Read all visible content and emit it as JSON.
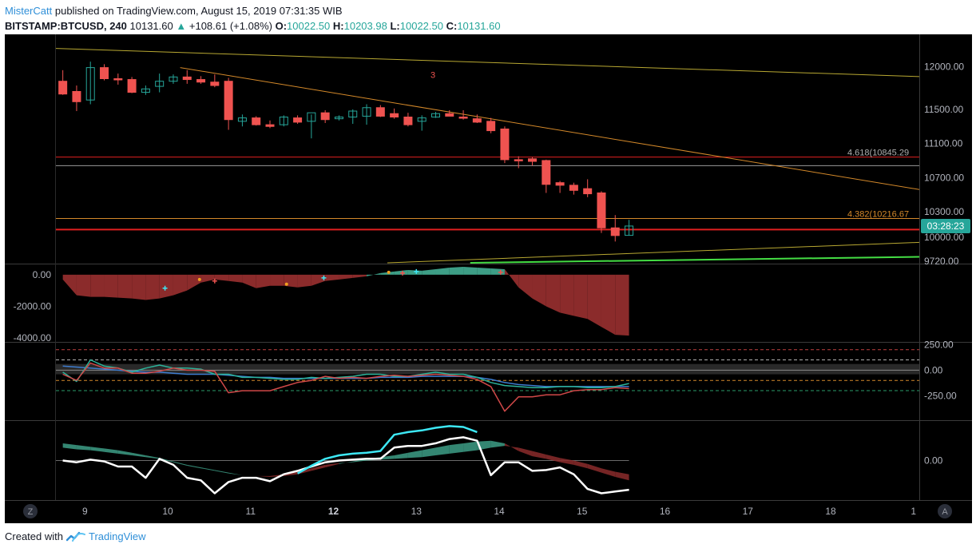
{
  "header": {
    "author": "MisterCatt",
    "published_text": "published on TradingView.com, August 15, 2019 07:31:35 WIB",
    "symbol": "BITSTAMP:BTCUSD, 240",
    "last": "10131.60",
    "change": "+108.61 (+1.08%)",
    "o_label": "O:",
    "o_value": "10022.50",
    "h_label": "H:",
    "h_value": "10203.98",
    "l_label": "L:",
    "l_value": "10022.50",
    "c_label": "C:",
    "c_value": "10131.60"
  },
  "footer": {
    "created_with": "Created with",
    "brand": "TradingView"
  },
  "colors": {
    "up": "#26a69a",
    "down": "#ef5350",
    "background": "#000000",
    "red_line": "#e02020",
    "orange_line": "#d4892a",
    "yellow_line": "#b8a832",
    "green_line": "#44dd44",
    "fill_red": "#8b2b2b",
    "fill_green": "#3d9e86",
    "cyan": "#3de8f5"
  },
  "chart_data": {
    "type": "candlestick",
    "title": "BITSTAMP:BTCUSD, 240",
    "x_ticks": [
      {
        "x": 0.35,
        "label": "9",
        "bold": false
      },
      {
        "x": 1.35,
        "label": "10",
        "bold": false
      },
      {
        "x": 2.35,
        "label": "11",
        "bold": false
      },
      {
        "x": 3.35,
        "label": "12",
        "bold": true
      },
      {
        "x": 4.35,
        "label": "13",
        "bold": false
      },
      {
        "x": 5.35,
        "label": "14",
        "bold": false
      },
      {
        "x": 6.35,
        "label": "15",
        "bold": false
      },
      {
        "x": 7.35,
        "label": "16",
        "bold": false
      },
      {
        "x": 8.35,
        "label": "17",
        "bold": false
      },
      {
        "x": 9.35,
        "label": "18",
        "bold": false
      },
      {
        "x": 10.35,
        "label": "1",
        "bold": false
      }
    ],
    "x_range": [
      0,
      10.42
    ],
    "main": {
      "y_range": [
        9700,
        12380
      ],
      "y_ticks": [
        12000,
        11500,
        11100,
        10700,
        10300,
        10000,
        9720
      ],
      "y_tick_labels": [
        "12000.00",
        "11500.00",
        "11100.00",
        "10700.00",
        "10300.00",
        "10000.00",
        "9720.00"
      ],
      "candles": [
        {
          "o": 11830,
          "h": 11960,
          "l": 11670,
          "c": 11680
        },
        {
          "o": 11710,
          "h": 11780,
          "l": 11480,
          "c": 11590
        },
        {
          "o": 11610,
          "h": 12060,
          "l": 11560,
          "c": 11990
        },
        {
          "o": 11990,
          "h": 12030,
          "l": 11840,
          "c": 11860
        },
        {
          "o": 11860,
          "h": 11920,
          "l": 11790,
          "c": 11850
        },
        {
          "o": 11850,
          "h": 11880,
          "l": 11690,
          "c": 11700
        },
        {
          "o": 11700,
          "h": 11780,
          "l": 11670,
          "c": 11740
        },
        {
          "o": 11770,
          "h": 11920,
          "l": 11700,
          "c": 11830
        },
        {
          "o": 11830,
          "h": 11910,
          "l": 11800,
          "c": 11880
        },
        {
          "o": 11880,
          "h": 11960,
          "l": 11800,
          "c": 11850
        },
        {
          "o": 11850,
          "h": 11890,
          "l": 11800,
          "c": 11820
        },
        {
          "o": 11820,
          "h": 11910,
          "l": 11760,
          "c": 11780
        },
        {
          "o": 11830,
          "h": 11870,
          "l": 11260,
          "c": 11380
        },
        {
          "o": 11360,
          "h": 11440,
          "l": 11300,
          "c": 11400
        },
        {
          "o": 11400,
          "h": 11420,
          "l": 11310,
          "c": 11320
        },
        {
          "o": 11320,
          "h": 11370,
          "l": 11280,
          "c": 11300
        },
        {
          "o": 11320,
          "h": 11430,
          "l": 11300,
          "c": 11410
        },
        {
          "o": 11400,
          "h": 11430,
          "l": 11330,
          "c": 11350
        },
        {
          "o": 11360,
          "h": 11440,
          "l": 11160,
          "c": 11460
        },
        {
          "o": 11460,
          "h": 11490,
          "l": 11340,
          "c": 11380
        },
        {
          "o": 11390,
          "h": 11430,
          "l": 11370,
          "c": 11410
        },
        {
          "o": 11410,
          "h": 11500,
          "l": 11330,
          "c": 11480
        },
        {
          "o": 11420,
          "h": 11560,
          "l": 11320,
          "c": 11520
        },
        {
          "o": 11520,
          "h": 11550,
          "l": 11410,
          "c": 11420
        },
        {
          "o": 11450,
          "h": 11510,
          "l": 11390,
          "c": 11410
        },
        {
          "o": 11410,
          "h": 11460,
          "l": 11300,
          "c": 11320
        },
        {
          "o": 11360,
          "h": 11430,
          "l": 11250,
          "c": 11400
        },
        {
          "o": 11410,
          "h": 11470,
          "l": 11400,
          "c": 11450
        },
        {
          "o": 11450,
          "h": 11490,
          "l": 11420,
          "c": 11420
        },
        {
          "o": 11410,
          "h": 11490,
          "l": 11380,
          "c": 11400
        },
        {
          "o": 11390,
          "h": 11440,
          "l": 11340,
          "c": 11350
        },
        {
          "o": 11360,
          "h": 11400,
          "l": 11220,
          "c": 11250
        },
        {
          "o": 11270,
          "h": 11300,
          "l": 10870,
          "c": 10910
        },
        {
          "o": 10910,
          "h": 10950,
          "l": 10810,
          "c": 10900
        },
        {
          "o": 10920,
          "h": 10940,
          "l": 10840,
          "c": 10890
        },
        {
          "o": 10900,
          "h": 10910,
          "l": 10520,
          "c": 10620
        },
        {
          "o": 10640,
          "h": 10660,
          "l": 10520,
          "c": 10610
        },
        {
          "o": 10610,
          "h": 10640,
          "l": 10500,
          "c": 10550
        },
        {
          "o": 10570,
          "h": 10680,
          "l": 10470,
          "c": 10510
        },
        {
          "o": 10520,
          "h": 10540,
          "l": 10050,
          "c": 10110
        },
        {
          "o": 10110,
          "h": 10260,
          "l": 9950,
          "c": 10020
        },
        {
          "o": 10022.5,
          "h": 10203.98,
          "l": 10022.5,
          "c": 10131.6
        }
      ],
      "horizontal_levels": [
        {
          "price": 10090,
          "color": "red"
        },
        {
          "price": 10940,
          "color": "red"
        },
        {
          "price": 10840,
          "color": "gray"
        },
        {
          "price": 10220,
          "color": "orange"
        }
      ],
      "fib_labels": [
        {
          "text": "4.618(10845.29",
          "price": 10940,
          "color": "#b0b0b0"
        },
        {
          "text": "4.382(10216.67",
          "price": 10220,
          "color": "#d4892a"
        }
      ],
      "trend_lines": [
        {
          "color": "yellow",
          "p1": {
            "x": 0.0,
            "y": 12215
          },
          "p2": {
            "x": 10.42,
            "y": 11885
          }
        },
        {
          "color": "orange",
          "p1": {
            "x": 1.5,
            "y": 11990
          },
          "p2": {
            "x": 10.42,
            "y": 10560
          }
        },
        {
          "color": "yellow",
          "p1": {
            "x": 4.0,
            "y": 9700
          },
          "p2": {
            "x": 10.42,
            "y": 9940
          }
        },
        {
          "color": "green",
          "p1": {
            "x": 5.0,
            "y": 9700
          },
          "p2": {
            "x": 10.42,
            "y": 9770
          }
        }
      ],
      "annotation": {
        "text": "3",
        "x": 4.55,
        "price": 11870
      },
      "current_label": "03:28:23",
      "current_price": 10131.6
    },
    "panel2": {
      "y_range": [
        -4200,
        600
      ],
      "y_ticks": [
        0,
        -2000,
        -4000
      ],
      "y_tick_labels": [
        "0.00",
        "-2000.00",
        "-4000.00"
      ],
      "values": [
        -300,
        -1300,
        -1400,
        -1400,
        -1450,
        -1500,
        -1600,
        -1500,
        -1300,
        -1000,
        -500,
        -300,
        -400,
        -500,
        -850,
        -700,
        -700,
        -800,
        -700,
        -400,
        -300,
        -200,
        -100,
        100,
        200,
        300,
        250,
        350,
        450,
        500,
        450,
        400,
        350,
        -800,
        -1500,
        -2000,
        -2400,
        -2600,
        -2800,
        -3300,
        -3800,
        -3850
      ],
      "markers": [
        {
          "i": 7.4,
          "v": -850,
          "color": "#3de8f5",
          "shape": "cross"
        },
        {
          "i": 9.9,
          "v": -300,
          "color": "#f0a020",
          "shape": "dot"
        },
        {
          "i": 11.0,
          "v": -400,
          "color": "#ef5350",
          "shape": "cross"
        },
        {
          "i": 16.2,
          "v": -600,
          "color": "#f0a020",
          "shape": "dot"
        },
        {
          "i": 18.9,
          "v": -200,
          "color": "#3de8f5",
          "shape": "cross"
        },
        {
          "i": 23.6,
          "v": 150,
          "color": "#f0a020",
          "shape": "dot"
        },
        {
          "i": 24.6,
          "v": 100,
          "color": "#ef5350",
          "shape": "cross"
        },
        {
          "i": 25.6,
          "v": 200,
          "color": "#3de8f5",
          "shape": "cross"
        },
        {
          "i": 31.7,
          "v": 150,
          "color": "#ef5350",
          "shape": "cross"
        }
      ]
    },
    "panel3": {
      "y_range": [
        -480,
        260
      ],
      "y_ticks": [
        250,
        0,
        -250
      ],
      "y_tick_labels": [
        "250.00",
        "0.00",
        "-250.00"
      ],
      "dashed_levels": [
        {
          "v": 200,
          "color": "#c04040"
        },
        {
          "v": 100,
          "color": "#b0b0b0"
        },
        {
          "v": -100,
          "color": "#d4892a"
        },
        {
          "v": -200,
          "color": "#2a9d6a"
        }
      ],
      "band": [
        -40,
        60
      ],
      "series_red": [
        -40,
        -100,
        70,
        20,
        20,
        -30,
        -30,
        -10,
        20,
        0,
        0,
        -10,
        -220,
        -200,
        -200,
        -200,
        -160,
        -120,
        -100,
        -60,
        -80,
        -70,
        -80,
        -60,
        -50,
        -60,
        -50,
        -40,
        -50,
        -60,
        -90,
        -160,
        -400,
        -260,
        -260,
        -240,
        -240,
        -200,
        -190,
        -190,
        -170,
        -180
      ],
      "series_teal": [
        -20,
        -110,
        100,
        40,
        20,
        -20,
        20,
        50,
        20,
        20,
        10,
        -40,
        -40,
        -70,
        -70,
        -80,
        -90,
        -90,
        -70,
        -80,
        -70,
        -60,
        -40,
        -40,
        -60,
        -60,
        -40,
        -20,
        -40,
        -40,
        -70,
        -120,
        -150,
        -160,
        -170,
        -170,
        -160,
        -160,
        -170,
        -170,
        -160,
        -130
      ],
      "series_blue": [
        40,
        30,
        20,
        10,
        0,
        -10,
        -20,
        -20,
        -30,
        -40,
        -40,
        -40,
        -50,
        -60,
        -70,
        -70,
        -80,
        -80,
        -80,
        -80,
        -80,
        -80,
        -80,
        -70,
        -70,
        -70,
        -60,
        -60,
        -60,
        -60,
        -70,
        -90,
        -120,
        -140,
        -150,
        -160,
        -160,
        -160,
        -160,
        -160,
        -160,
        -160
      ]
    },
    "panel4": {
      "y_range": [
        -450,
        450
      ],
      "y_ticks": [
        0
      ],
      "y_tick_labels": [
        "0.00"
      ],
      "mid": [
        200,
        180,
        160,
        140,
        120,
        90,
        60,
        30,
        -10,
        -50,
        -80,
        -110,
        -140,
        -170,
        -180,
        -190,
        -180,
        -160,
        -120,
        -80,
        -40,
        -10,
        20,
        40,
        60,
        90,
        120,
        150,
        180,
        200,
        220,
        230,
        200,
        110,
        50,
        20,
        -20,
        -50,
        -90,
        -140,
        -190,
        -230
      ],
      "signal": [
        150,
        130,
        120,
        100,
        80,
        60,
        40,
        20,
        -20,
        -60,
        -90,
        -120,
        -150,
        -170,
        -180,
        -180,
        -160,
        -130,
        -90,
        -50,
        -30,
        -20,
        0,
        10,
        20,
        30,
        40,
        60,
        80,
        100,
        120,
        150,
        170,
        150,
        110,
        70,
        30,
        0,
        -40,
        -90,
        -130,
        -160
      ],
      "white": [
        0,
        -20,
        10,
        -10,
        -70,
        -70,
        -200,
        20,
        -50,
        -200,
        -230,
        -380,
        -250,
        -200,
        -200,
        -240,
        -160,
        -120,
        -70,
        -20,
        0,
        10,
        20,
        20,
        150,
        170,
        170,
        200,
        250,
        270,
        230,
        -170,
        -20,
        -20,
        -120,
        -110,
        -80,
        -160,
        -330,
        -380,
        -360,
        -340
      ],
      "cyan": [
        null,
        null,
        null,
        null,
        null,
        null,
        null,
        null,
        null,
        null,
        null,
        null,
        null,
        null,
        null,
        null,
        null,
        -150,
        -60,
        20,
        60,
        80,
        90,
        110,
        300,
        330,
        350,
        380,
        400,
        390,
        330,
        null,
        null,
        null,
        null,
        null,
        null,
        null,
        null,
        null,
        null,
        null
      ]
    }
  }
}
